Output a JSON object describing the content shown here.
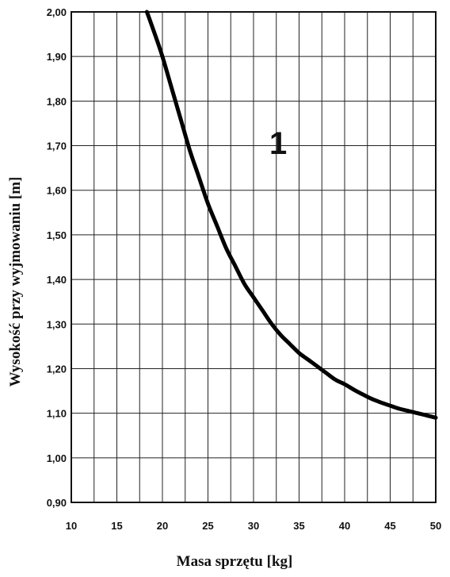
{
  "chart_data": {
    "type": "line",
    "title": "",
    "xlabel": "Masa sprzętu  [kg]",
    "ylabel": "Wysokość przy  wyjmowaniu  [m]",
    "xlim": [
      10,
      50
    ],
    "ylim": [
      0.9,
      2.0
    ],
    "x_ticks": [
      "10",
      "15",
      "20",
      "25",
      "30",
      "35",
      "40",
      "45",
      "50"
    ],
    "y_ticks": [
      "0,90",
      "1,00",
      "1,10",
      "1,20",
      "1,30",
      "1,40",
      "1,50",
      "1,60",
      "1,70",
      "1,80",
      "1,90",
      "2,00"
    ],
    "x_minor_step": 2.5,
    "grid": true,
    "annotation": "1",
    "series": [
      {
        "x": [
          18.3,
          19,
          20,
          21,
          22,
          23,
          24,
          25,
          26,
          27,
          28,
          29,
          30,
          31,
          32,
          33,
          34,
          35,
          36,
          37,
          38,
          39,
          40,
          41,
          42,
          43,
          44,
          45,
          46,
          47,
          48,
          49,
          50
        ],
        "values": [
          2.0,
          1.96,
          1.9,
          1.83,
          1.76,
          1.69,
          1.63,
          1.57,
          1.52,
          1.47,
          1.43,
          1.39,
          1.36,
          1.33,
          1.3,
          1.275,
          1.255,
          1.235,
          1.22,
          1.205,
          1.19,
          1.175,
          1.165,
          1.153,
          1.142,
          1.132,
          1.124,
          1.117,
          1.11,
          1.105,
          1.1,
          1.095,
          1.09
        ]
      }
    ]
  }
}
